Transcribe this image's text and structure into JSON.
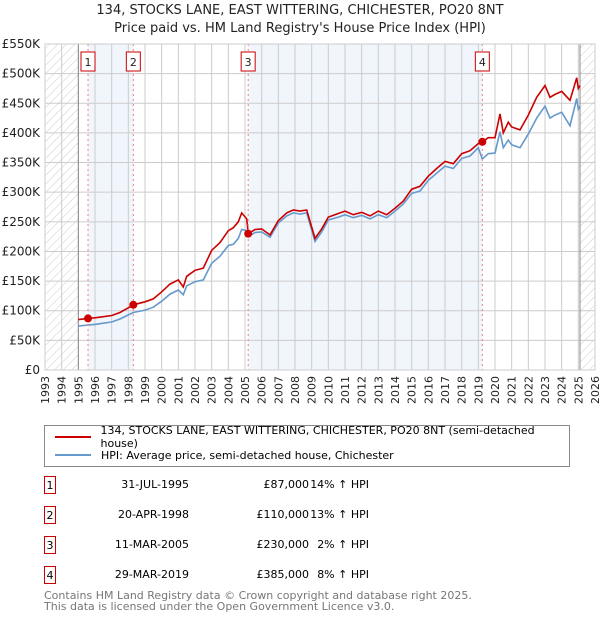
{
  "chart_data": {
    "type": "line",
    "title": "134, STOCKS LANE, EAST WITTERING, CHICHESTER, PO20 8NT",
    "subtitle": "Price paid vs. HM Land Registry's House Price Index (HPI)",
    "xlim": [
      1993,
      2026
    ],
    "ylim": [
      0,
      550000
    ],
    "x_ticks": [
      "1993",
      "1994",
      "1995",
      "1996",
      "1997",
      "1998",
      "1999",
      "2000",
      "2001",
      "2002",
      "2003",
      "2004",
      "2005",
      "2006",
      "2007",
      "2008",
      "2009",
      "2010",
      "2011",
      "2012",
      "2013",
      "2014",
      "2015",
      "2016",
      "2017",
      "2018",
      "2019",
      "2020",
      "2021",
      "2022",
      "2023",
      "2024",
      "2025",
      "2026"
    ],
    "y_ticks": [
      "£0",
      "£50K",
      "£100K",
      "£150K",
      "£200K",
      "£250K",
      "£300K",
      "£350K",
      "£400K",
      "£450K",
      "£500K",
      "£550K"
    ],
    "grid": true,
    "series": [
      {
        "name": "134, STOCKS LANE, EAST WITTERING, CHICHESTER, PO20 8NT (semi-detached house)",
        "color": "#cc0000",
        "x": [
          1995.0,
          1995.6,
          1996,
          1996.5,
          1997,
          1997.5,
          1998,
          1998.3,
          1999,
          1999.5,
          2000,
          2000.5,
          2001,
          2001.3,
          2001.5,
          2002,
          2002.5,
          2003,
          2003.5,
          2004,
          2004.3,
          2004.6,
          2004.8,
          2005.1,
          2005.2,
          2005.6,
          2006,
          2006.5,
          2007,
          2007.5,
          2007.9,
          2008.3,
          2008.7,
          2009.2,
          2009.6,
          2010,
          2010.6,
          2011,
          2011.5,
          2012,
          2012.5,
          2013,
          2013.5,
          2014,
          2014.5,
          2015,
          2015.5,
          2016,
          2016.5,
          2017,
          2017.5,
          2018,
          2018.5,
          2019,
          2019.24,
          2019.6,
          2020,
          2020.3,
          2020.5,
          2020.8,
          2021,
          2021.5,
          2022,
          2022.5,
          2023,
          2023.3,
          2023.6,
          2024,
          2024.5,
          2024.9,
          2025.0,
          2025.1
        ],
        "y": [
          85000,
          87000,
          88000,
          90000,
          92000,
          97000,
          105000,
          110000,
          115000,
          120000,
          132000,
          145000,
          152000,
          140000,
          158000,
          168000,
          172000,
          202000,
          215000,
          235000,
          240000,
          250000,
          265000,
          255000,
          230000,
          237000,
          238000,
          228000,
          252000,
          265000,
          270000,
          268000,
          270000,
          222000,
          238000,
          258000,
          264000,
          268000,
          262000,
          266000,
          260000,
          268000,
          262000,
          273000,
          285000,
          305000,
          310000,
          327000,
          340000,
          352000,
          348000,
          365000,
          370000,
          382000,
          385000,
          392000,
          392000,
          432000,
          400000,
          418000,
          410000,
          405000,
          430000,
          460000,
          480000,
          460000,
          465000,
          470000,
          455000,
          493000,
          475000,
          480000
        ]
      },
      {
        "name": "HPI: Average price, semi-detached house, Chichester",
        "color": "#6699cc",
        "x": [
          1995.0,
          1995.6,
          1996,
          1996.5,
          1997,
          1997.5,
          1998,
          1998.3,
          1999,
          1999.5,
          2000,
          2000.5,
          2001,
          2001.3,
          2001.5,
          2002,
          2002.5,
          2003,
          2003.5,
          2004,
          2004.3,
          2004.6,
          2004.8,
          2005.1,
          2005.2,
          2005.6,
          2006,
          2006.5,
          2007,
          2007.5,
          2007.9,
          2008.3,
          2008.7,
          2009.2,
          2009.6,
          2010,
          2010.6,
          2011,
          2011.5,
          2012,
          2012.5,
          2013,
          2013.5,
          2014,
          2014.5,
          2015,
          2015.5,
          2016,
          2016.5,
          2017,
          2017.5,
          2018,
          2018.5,
          2019,
          2019.24,
          2019.6,
          2020,
          2020.3,
          2020.5,
          2020.8,
          2021,
          2021.5,
          2022,
          2022.5,
          2023,
          2023.3,
          2023.6,
          2024,
          2024.5,
          2024.9,
          2025.0,
          2025.1
        ],
        "y": [
          74000,
          76000,
          77000,
          79000,
          81000,
          86000,
          93000,
          97000,
          101000,
          106000,
          116000,
          128000,
          135000,
          127000,
          142000,
          149000,
          152000,
          180000,
          192000,
          210000,
          212000,
          222000,
          237000,
          235000,
          225000,
          232000,
          233000,
          224000,
          248000,
          260000,
          265000,
          263000,
          265000,
          217000,
          233000,
          253000,
          258000,
          262000,
          257000,
          261000,
          255000,
          262000,
          257000,
          268000,
          280000,
          298000,
          302000,
          320000,
          332000,
          344000,
          340000,
          357000,
          361000,
          375000,
          356000,
          365000,
          366000,
          402000,
          375000,
          388000,
          380000,
          375000,
          398000,
          425000,
          445000,
          425000,
          430000,
          435000,
          412000,
          458000,
          440000,
          445000
        ]
      }
    ],
    "markers": [
      {
        "label": "1",
        "x": 1995.58,
        "y": 87000
      },
      {
        "label": "2",
        "x": 1998.3,
        "y": 110000
      },
      {
        "label": "3",
        "x": 2005.19,
        "y": 230000
      },
      {
        "label": "4",
        "x": 2019.24,
        "y": 385000
      }
    ],
    "shaded_ranges": [
      [
        1995.58,
        1998.3
      ],
      [
        2005.19,
        2019.24
      ]
    ],
    "hatched_ranges": [
      [
        1993,
        1995.0
      ],
      [
        2025.1,
        2026
      ]
    ]
  },
  "header": {
    "title": "134, STOCKS LANE, EAST WITTERING, CHICHESTER, PO20 8NT",
    "subtitle": "Price paid vs. HM Land Registry's House Price Index (HPI)"
  },
  "legend": {
    "items": [
      {
        "label": "134, STOCKS LANE, EAST WITTERING, CHICHESTER, PO20 8NT (semi-detached house)",
        "color": "#cc0000"
      },
      {
        "label": "HPI: Average price, semi-detached house, Chichester",
        "color": "#6699cc"
      }
    ]
  },
  "transactions": [
    {
      "num": "1",
      "date": "31-JUL-1995",
      "price": "£87,000",
      "hpi": "14% ↑ HPI"
    },
    {
      "num": "2",
      "date": "20-APR-1998",
      "price": "£110,000",
      "hpi": "13% ↑ HPI"
    },
    {
      "num": "3",
      "date": "11-MAR-2005",
      "price": "£230,000",
      "hpi": "2% ↑ HPI"
    },
    {
      "num": "4",
      "date": "29-MAR-2019",
      "price": "£385,000",
      "hpi": "8% ↑ HPI"
    }
  ],
  "footer": {
    "line1": "Contains HM Land Registry data © Crown copyright and database right 2025.",
    "line2": "This data is licensed under the Open Government Licence v3.0."
  }
}
